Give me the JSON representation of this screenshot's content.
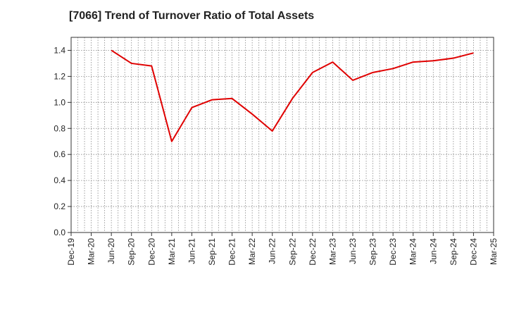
{
  "chart_data": {
    "type": "line",
    "title": "[7066]  Trend of Turnover Ratio of Total Assets",
    "xlabel": "",
    "ylabel": "",
    "x_tick_labels": [
      "Dec-19",
      "Mar-20",
      "Jun-20",
      "Sep-20",
      "Dec-20",
      "Mar-21",
      "Jun-21",
      "Sep-21",
      "Dec-21",
      "Mar-22",
      "Jun-22",
      "Sep-22",
      "Dec-22",
      "Mar-23",
      "Jun-23",
      "Sep-23",
      "Dec-23",
      "Mar-24",
      "Jun-24",
      "Sep-24",
      "Dec-24",
      "Mar-25"
    ],
    "y_ticks": [
      0.0,
      0.2,
      0.4,
      0.6,
      0.8,
      1.0,
      1.2,
      1.4
    ],
    "y_tick_labels": [
      "0.0",
      "0.2",
      "0.4",
      "0.6",
      "0.8",
      "1.0",
      "1.2",
      "1.4"
    ],
    "ylim": [
      0,
      1.5
    ],
    "grid": true,
    "grid_style": "dotted",
    "colors": {
      "line": "#e00000",
      "grid": "#888888",
      "axis": "#333333"
    },
    "series": [
      {
        "categories": [
          "Jun-20",
          "Sep-20",
          "Dec-20",
          "Mar-21",
          "Jun-21",
          "Sep-21",
          "Dec-21",
          "Mar-22",
          "Jun-22",
          "Sep-22",
          "Dec-22",
          "Mar-23",
          "Jun-23",
          "Sep-23",
          "Dec-23",
          "Mar-24",
          "Jun-24",
          "Sep-24",
          "Dec-24"
        ],
        "values": [
          1.4,
          1.3,
          1.28,
          0.7,
          0.96,
          1.02,
          1.03,
          0.91,
          0.78,
          1.03,
          1.23,
          1.31,
          1.17,
          1.23,
          1.26,
          1.31,
          1.32,
          1.34,
          1.38
        ]
      }
    ]
  }
}
